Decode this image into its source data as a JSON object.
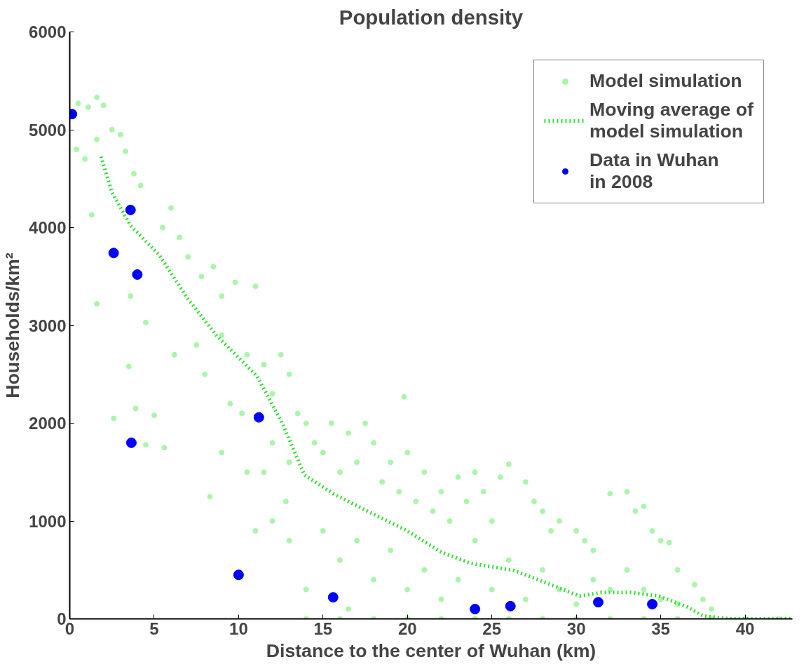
{
  "chart_data": {
    "type": "scatter",
    "title": "Population density",
    "xlabel": "Distance to the center of Wuhan (km)",
    "ylabel": "Households/km²",
    "xlim": [
      0,
      42.8
    ],
    "ylim": [
      0,
      6000
    ],
    "xticks": [
      0,
      5,
      10,
      15,
      20,
      25,
      30,
      35,
      40
    ],
    "yticks": [
      0,
      1000,
      2000,
      3000,
      4000,
      5000,
      6000
    ],
    "legend": "top right",
    "series": [
      {
        "name": "Model simulation",
        "marker": "circle",
        "color": "#aaf5aa",
        "x": [
          0.5,
          1.1,
          1.6,
          2.0,
          0.4,
          0.9,
          1.6,
          2.5,
          3.0,
          3.3,
          3.8,
          4.2,
          1.3,
          1.6,
          2.6,
          3.6,
          3.5,
          3.9,
          4.5,
          5.0,
          4.5,
          5.6,
          8.3,
          6.0,
          6.5,
          5.5,
          7.0,
          7.8,
          8.5,
          9.0,
          9.8,
          11.0,
          6.2,
          7.5,
          8.0,
          9.0,
          9.5,
          10.2,
          10.5,
          11.5,
          12.0,
          12.5,
          13,
          13.5,
          12.0,
          11.5,
          12.8,
          13.0,
          14,
          14.5,
          15,
          15.5,
          16,
          16.5,
          17,
          17.5,
          18,
          18.5,
          19,
          19.5,
          19.8,
          20,
          20.5,
          21,
          21.5,
          22,
          22.5,
          23,
          23.5,
          24,
          24.5,
          25,
          25.5,
          26,
          27,
          27.5,
          28,
          28.5,
          29,
          30,
          30.5,
          31,
          32,
          33,
          33.5,
          34,
          34.5,
          35,
          35.5,
          36,
          37,
          37.5,
          38,
          15,
          16,
          17,
          18,
          19,
          20,
          21,
          22,
          23,
          24,
          25,
          26,
          27,
          28,
          29,
          30,
          31,
          32,
          33,
          34,
          35,
          36,
          13,
          14,
          16.5,
          12,
          10.5,
          9,
          11,
          14,
          16,
          18,
          20,
          22,
          24,
          26,
          28,
          30,
          32,
          34,
          36,
          38,
          40,
          42
        ],
        "values": [
          5270,
          5230,
          5330,
          5250,
          4800,
          4700,
          4900,
          5000,
          4950,
          4780,
          4550,
          4430,
          4130,
          3220,
          2050,
          3300,
          2580,
          2150,
          3030,
          2080,
          1780,
          1750,
          1250,
          4200,
          3900,
          4000,
          3700,
          3500,
          3600,
          3300,
          3440,
          3400,
          2700,
          2800,
          2500,
          2900,
          2200,
          2100,
          2700,
          2600,
          2300,
          2700,
          2500,
          2100,
          1800,
          1500,
          1200,
          1600,
          2000,
          1800,
          1700,
          2000,
          1500,
          1900,
          1600,
          2000,
          1800,
          1400,
          1600,
          1300,
          2270,
          1700,
          1200,
          1500,
          1100,
          1300,
          1000,
          1450,
          1200,
          1500,
          1300,
          1000,
          1450,
          1580,
          1400,
          1200,
          1100,
          900,
          1000,
          900,
          800,
          700,
          1280,
          1300,
          1100,
          1150,
          900,
          800,
          780,
          500,
          350,
          200,
          100,
          900,
          600,
          800,
          400,
          700,
          300,
          500,
          200,
          400,
          800,
          300,
          600,
          200,
          500,
          300,
          150,
          400,
          300,
          500,
          300,
          200,
          150,
          800,
          300,
          100,
          1000,
          1500,
          1700,
          900,
          0,
          0,
          0,
          0,
          0,
          0,
          0,
          0,
          0,
          0,
          0,
          0,
          0,
          0,
          0
        ]
      },
      {
        "name": "Moving average of\nmodel simulation",
        "type": "line",
        "line_style": "dotted",
        "marker": "none",
        "color": "#33dd33",
        "x": [
          1.85,
          2.5,
          3.6,
          5.3,
          7.0,
          8.7,
          10.0,
          11.1,
          12.6,
          13.9,
          15.6,
          17.7,
          19.9,
          22.0,
          23.7,
          26.3,
          28.0,
          30.2,
          31.5,
          33.2,
          34.9,
          36.6,
          37.5,
          39.2,
          42.8
        ],
        "values": [
          4725,
          4360,
          4020,
          3720,
          3270,
          2895,
          2670,
          2480,
          1995,
          1470,
          1280,
          1095,
          908,
          683,
          570,
          495,
          383,
          233,
          270,
          270,
          233,
          120,
          30,
          0,
          0
        ]
      },
      {
        "name": "Data in Wuhan\nin 2008",
        "marker": "circle",
        "color": "#0000ff",
        "x": [
          0.13,
          3.6,
          2.6,
          4.0,
          3.65,
          11.2,
          10.0,
          15.6,
          24.0,
          26.1,
          31.3,
          34.5
        ],
        "values": [
          5160,
          4180,
          3740,
          3520,
          1800,
          2060,
          450,
          220,
          100,
          130,
          170,
          150
        ]
      }
    ]
  }
}
